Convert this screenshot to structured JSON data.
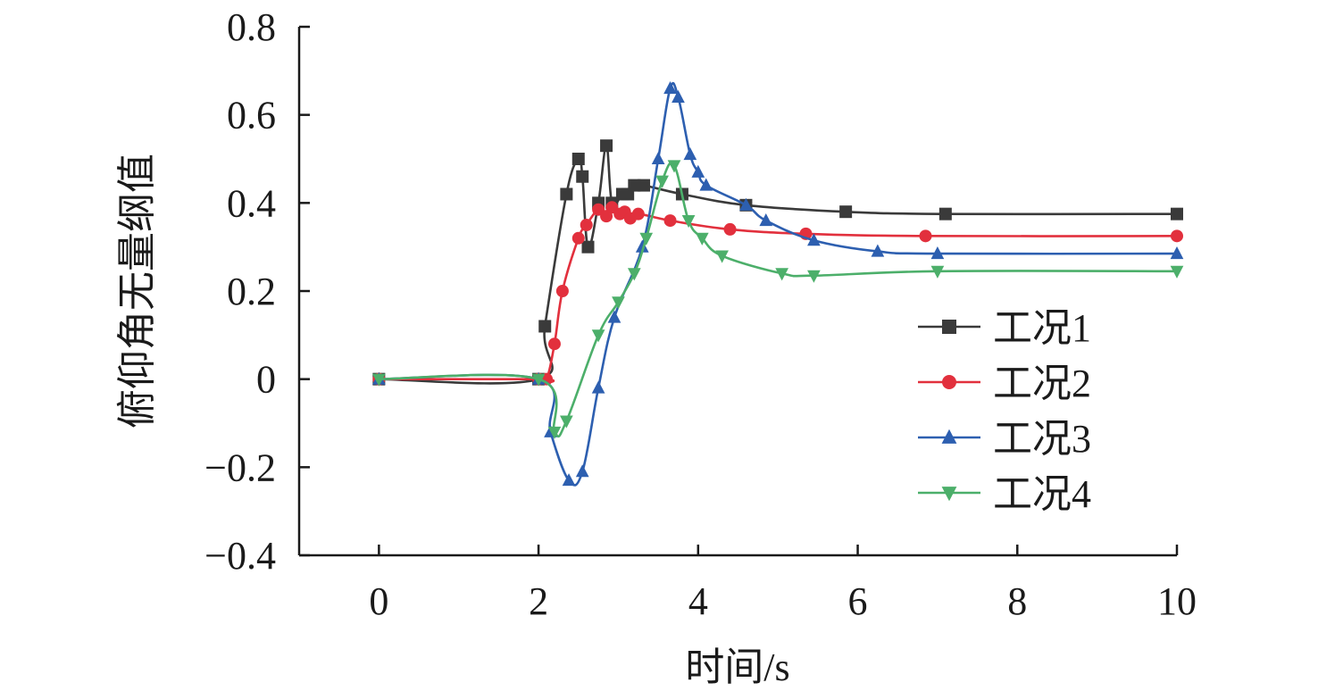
{
  "colors": {
    "axis": "#1a1a1a",
    "series": [
      "#3a3a3a",
      "#e2303d",
      "#2d5fb0",
      "#4caf6a"
    ]
  },
  "chart_data": {
    "type": "line",
    "title": "",
    "xlabel": "时间/s",
    "ylabel": "俯仰角无量纲值",
    "xlim": [
      -1,
      10
    ],
    "ylim": [
      -0.4,
      0.8
    ],
    "xticks": [
      0,
      2,
      4,
      6,
      8,
      10
    ],
    "yticks": [
      -0.4,
      -0.2,
      0,
      0.2,
      0.4,
      0.6,
      0.8
    ],
    "xtick_labels": [
      "0",
      "2",
      "4",
      "6",
      "8",
      "10"
    ],
    "ytick_labels": [
      "−0.4",
      "−0.2",
      "0",
      "0.2",
      "0.4",
      "0.6",
      "0.8"
    ],
    "grid": false,
    "legend_position": "right",
    "series": [
      {
        "name": "工况1",
        "marker": "square",
        "points": [
          [
            0,
            0
          ],
          [
            2,
            0
          ],
          [
            2.08,
            0.12
          ],
          [
            2.35,
            0.42
          ],
          [
            2.5,
            0.5
          ],
          [
            2.55,
            0.46
          ],
          [
            2.62,
            0.3
          ],
          [
            2.75,
            0.4
          ],
          [
            2.85,
            0.53
          ],
          [
            2.92,
            0.4
          ],
          [
            3.05,
            0.42
          ],
          [
            3.12,
            0.42
          ],
          [
            3.2,
            0.44
          ],
          [
            3.32,
            0.44
          ],
          [
            3.8,
            0.42
          ],
          [
            4.6,
            0.395
          ],
          [
            5.85,
            0.38
          ],
          [
            7.1,
            0.375
          ],
          [
            10,
            0.375
          ]
        ]
      },
      {
        "name": "工况2",
        "marker": "circle",
        "points": [
          [
            0,
            0
          ],
          [
            2,
            0
          ],
          [
            2.1,
            0
          ],
          [
            2.2,
            0.08
          ],
          [
            2.3,
            0.2
          ],
          [
            2.5,
            0.32
          ],
          [
            2.6,
            0.35
          ],
          [
            2.75,
            0.385
          ],
          [
            2.85,
            0.37
          ],
          [
            2.92,
            0.39
          ],
          [
            3.02,
            0.375
          ],
          [
            3.08,
            0.38
          ],
          [
            3.15,
            0.365
          ],
          [
            3.25,
            0.375
          ],
          [
            3.65,
            0.36
          ],
          [
            4.4,
            0.34
          ],
          [
            5.35,
            0.33
          ],
          [
            6.85,
            0.325
          ],
          [
            10,
            0.325
          ]
        ]
      },
      {
        "name": "工况3",
        "marker": "triangle-up",
        "points": [
          [
            0,
            0
          ],
          [
            2,
            0
          ],
          [
            2.15,
            -0.12
          ],
          [
            2.38,
            -0.23
          ],
          [
            2.55,
            -0.21
          ],
          [
            2.75,
            -0.02
          ],
          [
            2.95,
            0.14
          ],
          [
            3.3,
            0.3
          ],
          [
            3.5,
            0.5
          ],
          [
            3.65,
            0.66
          ],
          [
            3.75,
            0.64
          ],
          [
            3.9,
            0.51
          ],
          [
            4.0,
            0.47
          ],
          [
            4.1,
            0.44
          ],
          [
            4.6,
            0.395
          ],
          [
            4.85,
            0.36
          ],
          [
            5.45,
            0.315
          ],
          [
            6.25,
            0.29
          ],
          [
            7.0,
            0.285
          ],
          [
            10,
            0.285
          ]
        ]
      },
      {
        "name": "工况4",
        "marker": "triangle-down",
        "points": [
          [
            0,
            0
          ],
          [
            2,
            0
          ],
          [
            2.2,
            -0.12
          ],
          [
            2.35,
            -0.095
          ],
          [
            2.75,
            0.1
          ],
          [
            3.0,
            0.175
          ],
          [
            3.2,
            0.24
          ],
          [
            3.35,
            0.32
          ],
          [
            3.55,
            0.45
          ],
          [
            3.7,
            0.485
          ],
          [
            3.88,
            0.36
          ],
          [
            4.05,
            0.32
          ],
          [
            4.3,
            0.28
          ],
          [
            5.05,
            0.24
          ],
          [
            5.45,
            0.235
          ],
          [
            7.0,
            0.245
          ],
          [
            10,
            0.245
          ]
        ]
      }
    ]
  }
}
